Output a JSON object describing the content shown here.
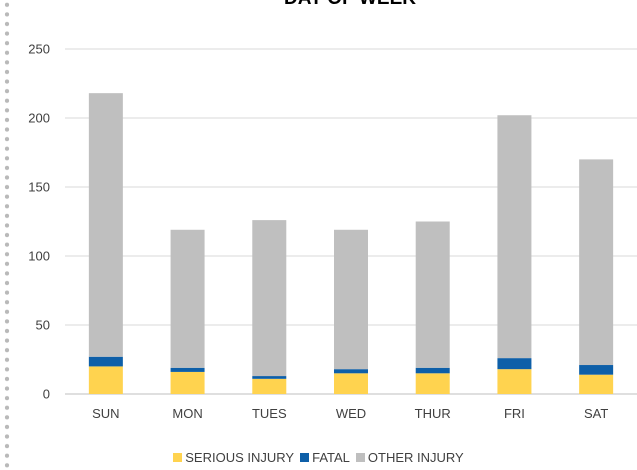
{
  "chart_data": {
    "type": "bar",
    "stacked": true,
    "title": "DAY OF WEEK",
    "categories": [
      "SUN",
      "MON",
      "TUES",
      "WED",
      "THUR",
      "FRI",
      "SAT"
    ],
    "series": [
      {
        "name": "SERIOUS INJURY",
        "color": "#FFD34F",
        "values": [
          20,
          16,
          11,
          15,
          15,
          18,
          14
        ]
      },
      {
        "name": "FATAL",
        "color": "#0E5FA8",
        "values": [
          7,
          3,
          2,
          3,
          4,
          8,
          7
        ]
      },
      {
        "name": "OTHER INJURY",
        "color": "#BFBFBF",
        "values": [
          191,
          100,
          113,
          101,
          106,
          176,
          149
        ]
      }
    ],
    "ylim": [
      0,
      250
    ],
    "yticks": [
      0,
      50,
      100,
      150,
      200,
      250
    ],
    "grid": true,
    "legend": "bottom"
  }
}
